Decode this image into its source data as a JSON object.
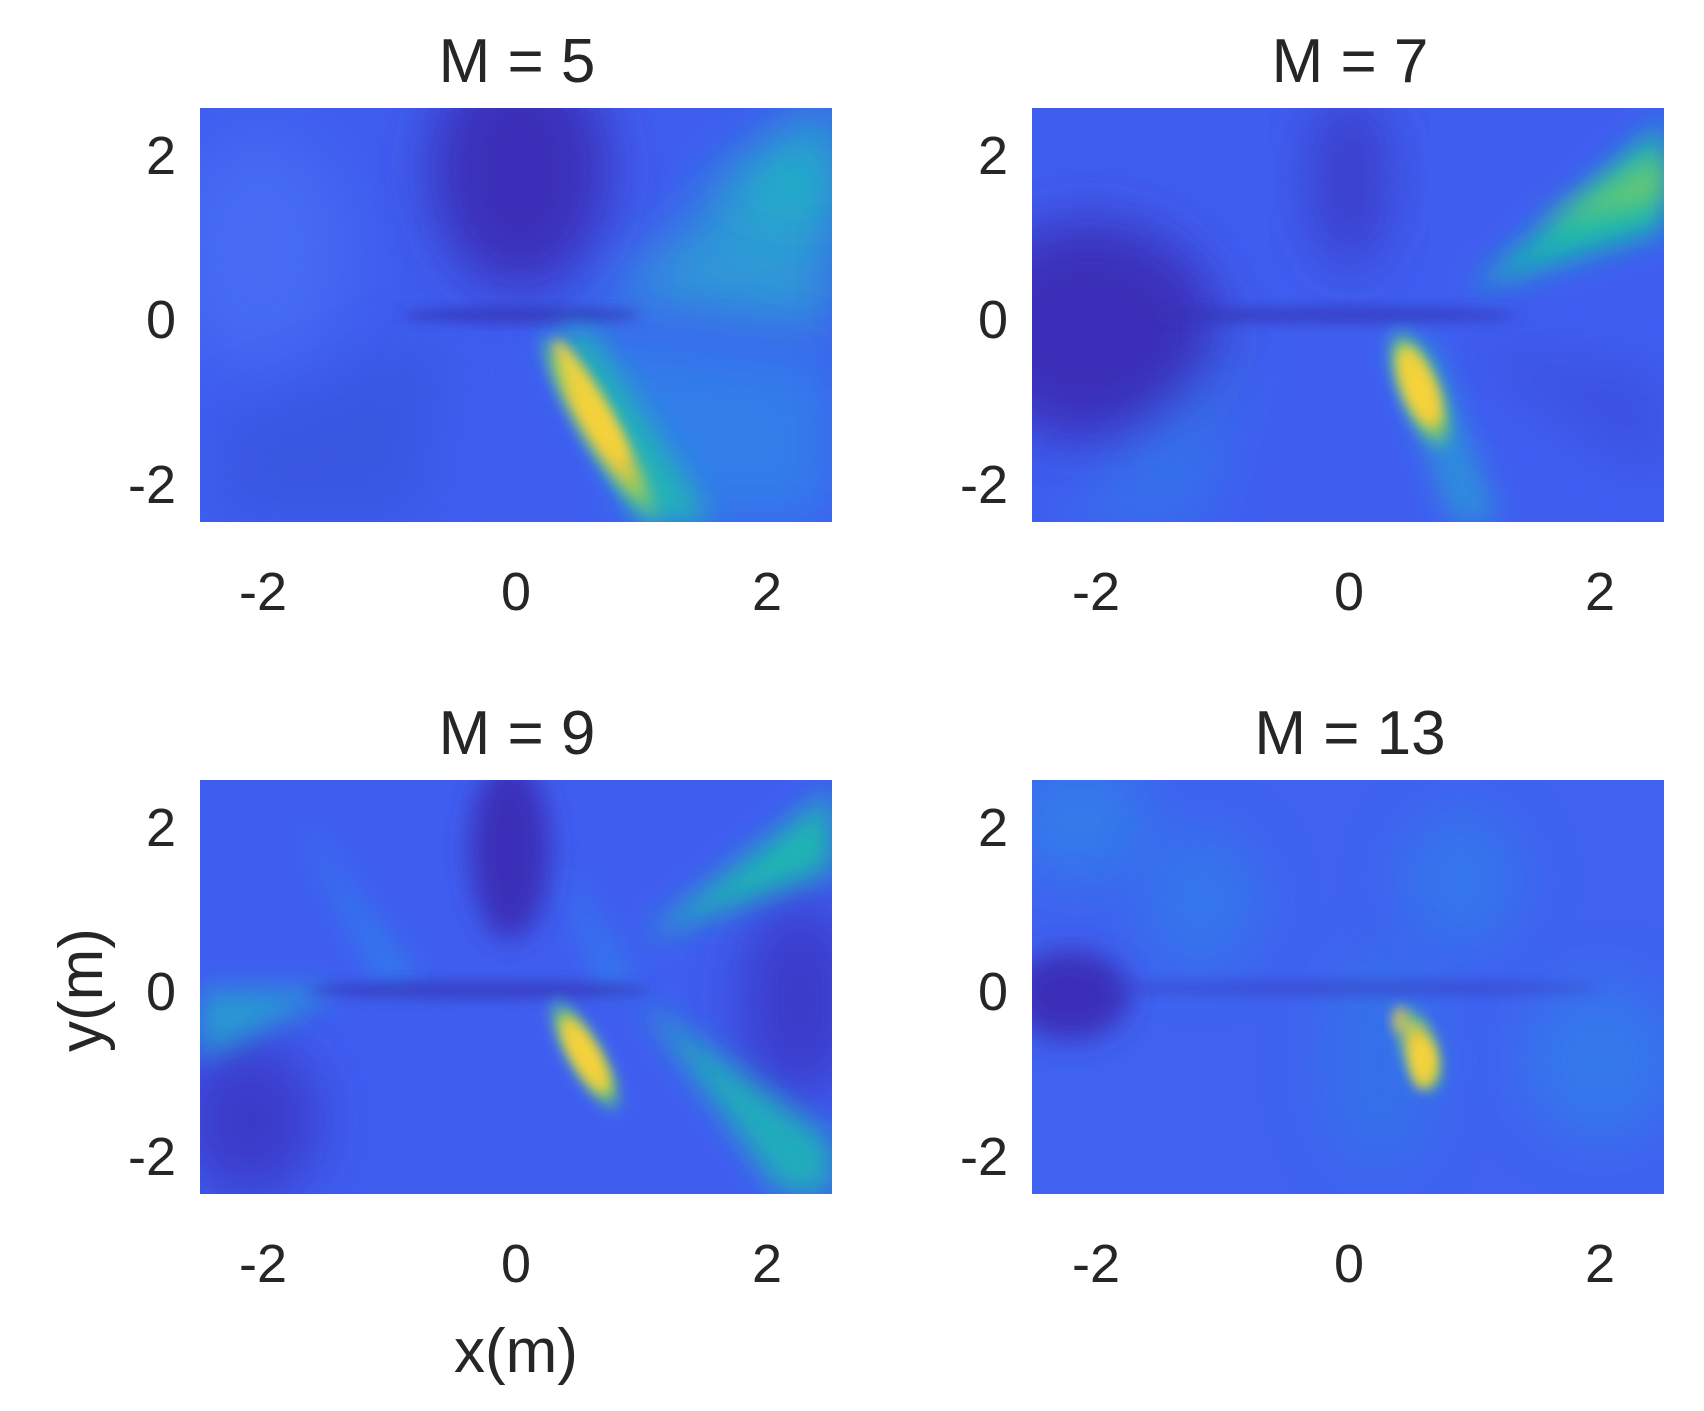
{
  "chart_data": [
    {
      "type": "heatmap",
      "title": "M = 5",
      "xlabel": "",
      "ylabel": "",
      "xlim": [
        -2.5,
        2.5
      ],
      "ylim": [
        -2.5,
        2.5
      ],
      "xticks": [
        "-2",
        "0",
        "2"
      ],
      "yticks": [
        "2",
        "0",
        "-2"
      ],
      "colormap": "parula",
      "hotspot": {
        "x": 0.45,
        "y": -0.2,
        "x_end": 1.3,
        "y_end": -2.5
      }
    },
    {
      "type": "heatmap",
      "title": "M = 7",
      "xlabel": "",
      "ylabel": "",
      "xlim": [
        -2.5,
        2.5
      ],
      "ylim": [
        -2.5,
        2.5
      ],
      "xticks": [
        "-2",
        "0",
        "2"
      ],
      "yticks": [
        "2",
        "0",
        "-2"
      ],
      "colormap": "parula",
      "hotspot": {
        "x": 0.5,
        "y": -0.6,
        "x_end": 0.85,
        "y_end": -1.6
      }
    },
    {
      "type": "heatmap",
      "title": "M = 9",
      "xlabel": "x(m)",
      "ylabel": "y(m)",
      "xlim": [
        -2.5,
        2.5
      ],
      "ylim": [
        -2.5,
        2.5
      ],
      "xticks": [
        "-2",
        "0",
        "2"
      ],
      "yticks": [
        "2",
        "0",
        "-2"
      ],
      "colormap": "parula",
      "hotspot": {
        "x": 0.5,
        "y": -0.5,
        "x_end": 0.85,
        "y_end": -1.5
      }
    },
    {
      "type": "heatmap",
      "title": "M = 13",
      "xlabel": "",
      "ylabel": "",
      "xlim": [
        -2.5,
        2.5
      ],
      "ylim": [
        -2.5,
        2.5
      ],
      "xticks": [
        "-2",
        "0",
        "2"
      ],
      "yticks": [
        "2",
        "0",
        "-2"
      ],
      "colormap": "parula",
      "hotspot": {
        "x": 0.65,
        "y": -1.0,
        "x_end": 0.4,
        "y_end": -0.4
      }
    }
  ],
  "colors": {
    "base": "#3f5ef0",
    "dark": "#3a2fb8",
    "cyan": "#1fb5c6",
    "teal": "#16c1a6",
    "yellow": "#f6d43a",
    "text": "#262626"
  }
}
